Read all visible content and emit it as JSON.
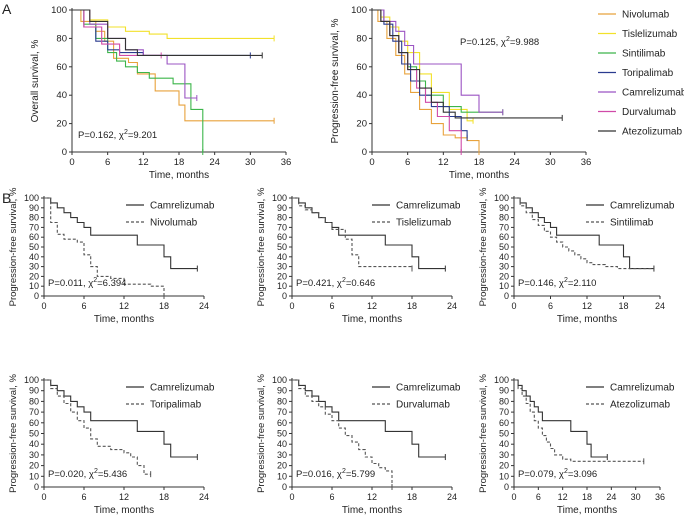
{
  "panel_labels": [
    "A",
    "B"
  ],
  "chart_data": [
    {
      "id": "A1",
      "type": "line",
      "title": "",
      "xlabel": "Time, months",
      "ylabel": "Overall survival, %",
      "xticks": [
        0,
        6,
        12,
        18,
        24,
        30,
        36
      ],
      "yticks": [
        0,
        20,
        40,
        60,
        80,
        100
      ],
      "xlim": [
        0,
        36
      ],
      "ylim": [
        0,
        100
      ],
      "annotation": {
        "p": "P=0.162, χ",
        "sup": "2",
        "stat": "=9.201"
      },
      "legend_position": "none",
      "series": [
        {
          "name": "Nivolumab",
          "color": "#e8a23c",
          "dash": "",
          "t": [
            0,
            1.5,
            4,
            5.5,
            7,
            9.5,
            11,
            14,
            16,
            18,
            19,
            34
          ],
          "y": [
            100,
            92,
            85,
            78,
            66,
            63,
            55,
            43,
            43,
            33,
            22,
            22
          ]
        },
        {
          "name": "Tislelizumab",
          "color": "#f2e12b",
          "dash": "",
          "t": [
            0,
            3,
            6,
            9,
            13,
            16,
            34
          ],
          "y": [
            100,
            93,
            88,
            85,
            83,
            80,
            80
          ]
        },
        {
          "name": "Sintilimab",
          "color": "#3cb54a",
          "dash": "",
          "t": [
            0,
            2,
            4,
            6,
            7.5,
            9,
            11,
            13,
            17,
            20,
            22
          ],
          "y": [
            100,
            90,
            80,
            70,
            64,
            60,
            56,
            52,
            48,
            30,
            0
          ]
        },
        {
          "name": "Toripalimab",
          "color": "#2a3b8f",
          "dash": "",
          "t": [
            0,
            2,
            4,
            6,
            8,
            12,
            30
          ],
          "y": [
            100,
            88,
            78,
            72,
            70,
            68,
            68
          ]
        },
        {
          "name": "Camrelizumab",
          "color": "#9b54c3",
          "dash": "",
          "t": [
            0,
            3,
            6,
            9,
            12,
            16,
            19,
            21
          ],
          "y": [
            100,
            90,
            80,
            72,
            68,
            62,
            38,
            38
          ]
        },
        {
          "name": "Durvalumab",
          "color": "#d04aa8",
          "dash": "",
          "t": [
            0,
            2,
            5,
            8,
            15
          ],
          "y": [
            100,
            88,
            76,
            68,
            68
          ]
        },
        {
          "name": "Atezolizumab",
          "color": "#333333",
          "dash": "",
          "t": [
            0,
            3,
            6,
            9,
            11,
            32
          ],
          "y": [
            100,
            92,
            80,
            72,
            68,
            68
          ]
        }
      ]
    },
    {
      "id": "A2",
      "type": "line",
      "title": "",
      "xlabel": "Time, months",
      "ylabel": "Progression-free survival, %",
      "xticks": [
        0,
        6,
        12,
        18,
        24,
        30,
        36
      ],
      "yticks": [
        0,
        20,
        40,
        60,
        80,
        100
      ],
      "xlim": [
        0,
        36
      ],
      "ylim": [
        0,
        100
      ],
      "annotation": {
        "p": "P=0.125, χ",
        "sup": "2",
        "stat": "=9.988"
      },
      "legend_position": "right",
      "series": [
        {
          "name": "Nivolumab",
          "color": "#e8a23c",
          "dash": "",
          "t": [
            0,
            1,
            2.5,
            4,
            5.5,
            6.5,
            8,
            10,
            12,
            14,
            16,
            18
          ],
          "y": [
            100,
            92,
            80,
            68,
            55,
            42,
            30,
            20,
            12,
            10,
            8,
            0
          ]
        },
        {
          "name": "Tislelizumab",
          "color": "#f2e12b",
          "dash": "",
          "t": [
            0,
            1.5,
            3,
            4.5,
            6,
            8,
            10,
            13,
            16,
            17
          ],
          "y": [
            100,
            95,
            88,
            78,
            70,
            55,
            42,
            30,
            22,
            22
          ]
        },
        {
          "name": "Sintilimab",
          "color": "#3cb54a",
          "dash": "",
          "t": [
            0,
            1.5,
            3,
            4.5,
            6,
            7.5,
            9,
            12,
            15,
            20,
            22
          ],
          "y": [
            100,
            92,
            82,
            70,
            60,
            50,
            40,
            32,
            28,
            28,
            28
          ]
        },
        {
          "name": "Toripalimab",
          "color": "#2a3b8f",
          "dash": "",
          "t": [
            0,
            2,
            3.5,
            5,
            6.5,
            8,
            10,
            13,
            15,
            16
          ],
          "y": [
            100,
            90,
            78,
            62,
            50,
            40,
            32,
            25,
            15,
            10
          ]
        },
        {
          "name": "Camrelizumab",
          "color": "#9b54c3",
          "dash": "",
          "t": [
            0,
            2,
            4,
            5.5,
            7,
            13,
            15,
            18,
            22
          ],
          "y": [
            100,
            92,
            85,
            75,
            62,
            62,
            40,
            28,
            28
          ]
        },
        {
          "name": "Durvalumab",
          "color": "#d04aa8",
          "dash": "",
          "t": [
            0,
            1.5,
            3,
            4.5,
            6,
            7.5,
            9,
            11,
            13,
            15
          ],
          "y": [
            100,
            92,
            82,
            70,
            58,
            45,
            35,
            25,
            15,
            0
          ]
        },
        {
          "name": "Atezolizumab",
          "color": "#333333",
          "dash": "",
          "t": [
            0,
            1.5,
            3,
            4.5,
            6,
            8,
            10,
            12,
            14,
            32
          ],
          "y": [
            100,
            92,
            82,
            70,
            58,
            45,
            35,
            28,
            24,
            24
          ]
        }
      ]
    },
    {
      "id": "B1",
      "type": "line",
      "title": "",
      "xlabel": "Time, months",
      "ylabel": "Progression-free survival, %",
      "xticks": [
        0,
        6,
        12,
        18,
        24
      ],
      "yticks": [
        0,
        10,
        20,
        30,
        40,
        50,
        60,
        70,
        80,
        90,
        100
      ],
      "xlim": [
        0,
        24
      ],
      "ylim": [
        0,
        100
      ],
      "annotation": {
        "p": "P=0.011, χ",
        "sup": "2",
        "stat": "=6.394"
      },
      "legend_position": "top-right",
      "series": [
        {
          "name": "Camrelizumab",
          "color": "#333333",
          "dash": "",
          "t": [
            0,
            1,
            2,
            3,
            4,
            5,
            6,
            7,
            13,
            14,
            15,
            18,
            19,
            23
          ],
          "y": [
            100,
            95,
            90,
            85,
            80,
            75,
            70,
            62,
            62,
            52,
            52,
            40,
            28,
            28
          ]
        },
        {
          "name": "Nivolumab",
          "color": "#555555",
          "dash": "3,2",
          "t": [
            0,
            1,
            2,
            3,
            5,
            6,
            7,
            8,
            9,
            10,
            12,
            14,
            16,
            18
          ],
          "y": [
            100,
            75,
            63,
            58,
            55,
            42,
            30,
            20,
            20,
            18,
            12,
            12,
            10,
            0
          ]
        }
      ]
    },
    {
      "id": "B2",
      "type": "line",
      "title": "",
      "xlabel": "Time, months",
      "ylabel": "Progression-free survival, %",
      "xticks": [
        0,
        6,
        12,
        18,
        24
      ],
      "yticks": [
        0,
        10,
        20,
        30,
        40,
        50,
        60,
        70,
        80,
        90,
        100
      ],
      "xlim": [
        0,
        24
      ],
      "ylim": [
        0,
        100
      ],
      "annotation": {
        "p": "P=0.421, χ",
        "sup": "2",
        "stat": "=0.646"
      },
      "legend_position": "top-right",
      "series": [
        {
          "name": "Camrelizumab",
          "color": "#333333",
          "dash": "",
          "t": [
            0,
            1,
            2,
            3,
            4,
            5,
            6,
            7,
            13,
            14,
            15,
            18,
            19,
            23
          ],
          "y": [
            100,
            95,
            90,
            85,
            80,
            75,
            70,
            62,
            62,
            52,
            52,
            40,
            28,
            28
          ]
        },
        {
          "name": "Tislelizumab",
          "color": "#555555",
          "dash": "3,2",
          "t": [
            0,
            1,
            2,
            3,
            4,
            5,
            6,
            8,
            9,
            10,
            12,
            14,
            18
          ],
          "y": [
            100,
            92,
            88,
            85,
            80,
            75,
            68,
            58,
            42,
            30,
            30,
            30,
            28
          ]
        }
      ]
    },
    {
      "id": "B3",
      "type": "line",
      "title": "",
      "xlabel": "Time, months",
      "ylabel": "Progression-free survival, %",
      "xticks": [
        0,
        6,
        12,
        18,
        24
      ],
      "yticks": [
        0,
        10,
        20,
        30,
        40,
        50,
        60,
        70,
        80,
        90,
        100
      ],
      "xlim": [
        0,
        24
      ],
      "ylim": [
        0,
        100
      ],
      "annotation": {
        "p": "P=0.146, χ",
        "sup": "2",
        "stat": "=2.110"
      },
      "legend_position": "top-right",
      "series": [
        {
          "name": "Camrelizumab",
          "color": "#333333",
          "dash": "",
          "t": [
            0,
            1,
            2,
            3,
            4,
            5,
            6,
            7,
            13,
            14,
            15,
            18,
            19,
            23
          ],
          "y": [
            100,
            95,
            90,
            85,
            80,
            75,
            70,
            62,
            62,
            52,
            52,
            40,
            28,
            28
          ]
        },
        {
          "name": "Sintilimab",
          "color": "#555555",
          "dash": "3,2",
          "t": [
            0,
            1,
            2,
            3,
            4,
            5,
            6,
            7,
            8,
            9,
            10,
            11,
            12,
            13,
            15,
            17,
            21,
            23
          ],
          "y": [
            100,
            92,
            85,
            78,
            72,
            66,
            60,
            55,
            50,
            46,
            42,
            38,
            34,
            32,
            30,
            28,
            28,
            28
          ]
        }
      ]
    },
    {
      "id": "B4",
      "type": "line",
      "title": "",
      "xlabel": "Time, months",
      "ylabel": "Progression-free survival, %",
      "xticks": [
        0,
        6,
        12,
        18,
        24
      ],
      "yticks": [
        0,
        10,
        20,
        30,
        40,
        50,
        60,
        70,
        80,
        90,
        100
      ],
      "xlim": [
        0,
        24
      ],
      "ylim": [
        0,
        100
      ],
      "annotation": {
        "p": "P=0.020, χ",
        "sup": "2",
        "stat": "=5.436"
      },
      "legend_position": "top-right",
      "series": [
        {
          "name": "Camrelizumab",
          "color": "#333333",
          "dash": "",
          "t": [
            0,
            1,
            2,
            3,
            4,
            5,
            6,
            7,
            13,
            14,
            15,
            18,
            19,
            23
          ],
          "y": [
            100,
            95,
            90,
            85,
            80,
            75,
            70,
            62,
            62,
            52,
            52,
            40,
            28,
            28
          ]
        },
        {
          "name": "Toripalimab",
          "color": "#555555",
          "dash": "3,2",
          "t": [
            0,
            1,
            2,
            3,
            4,
            5,
            6,
            7,
            8,
            10,
            12,
            13,
            14,
            15,
            16
          ],
          "y": [
            100,
            92,
            85,
            78,
            70,
            62,
            55,
            45,
            38,
            35,
            32,
            28,
            20,
            12,
            12
          ]
        }
      ]
    },
    {
      "id": "B5",
      "type": "line",
      "title": "",
      "xlabel": "Time, months",
      "ylabel": "Progression-free survival, %",
      "xticks": [
        0,
        6,
        12,
        18,
        24
      ],
      "yticks": [
        0,
        10,
        20,
        30,
        40,
        50,
        60,
        70,
        80,
        90,
        100
      ],
      "xlim": [
        0,
        24
      ],
      "ylim": [
        0,
        100
      ],
      "annotation": {
        "p": "P=0.016, χ",
        "sup": "2",
        "stat": "=5.799"
      },
      "legend_position": "top-right",
      "series": [
        {
          "name": "Camrelizumab",
          "color": "#333333",
          "dash": "",
          "t": [
            0,
            1,
            2,
            3,
            4,
            5,
            6,
            7,
            13,
            14,
            15,
            18,
            19,
            23
          ],
          "y": [
            100,
            95,
            90,
            85,
            80,
            75,
            70,
            62,
            62,
            52,
            52,
            40,
            28,
            28
          ]
        },
        {
          "name": "Durvalumab",
          "color": "#555555",
          "dash": "3,2",
          "t": [
            0,
            1,
            2,
            3,
            4,
            5,
            6,
            7,
            8,
            9,
            10,
            11,
            12,
            13,
            14,
            15
          ],
          "y": [
            100,
            92,
            85,
            80,
            75,
            68,
            62,
            55,
            48,
            42,
            35,
            28,
            22,
            18,
            15,
            0
          ]
        }
      ]
    },
    {
      "id": "B6",
      "type": "line",
      "title": "",
      "xlabel": "Time, months",
      "ylabel": "Progression-free survival, %",
      "xticks": [
        0,
        6,
        12,
        18,
        24,
        30,
        36
      ],
      "yticks": [
        0,
        10,
        20,
        30,
        40,
        50,
        60,
        70,
        80,
        90,
        100
      ],
      "xlim": [
        0,
        36
      ],
      "ylim": [
        0,
        100
      ],
      "annotation": {
        "p": "P=0.079, χ",
        "sup": "2",
        "stat": "=3.096"
      },
      "legend_position": "top-right",
      "series": [
        {
          "name": "Camrelizumab",
          "color": "#333333",
          "dash": "",
          "t": [
            0,
            1,
            2,
            3,
            4,
            5,
            6,
            7,
            13,
            14,
            15,
            18,
            19,
            23
          ],
          "y": [
            100,
            95,
            90,
            85,
            80,
            75,
            70,
            62,
            62,
            52,
            52,
            40,
            28,
            28
          ]
        },
        {
          "name": "Atezolizumab",
          "color": "#555555",
          "dash": "3,2",
          "t": [
            0,
            1,
            2,
            3,
            4,
            5,
            6,
            7,
            8,
            9,
            10,
            12,
            14,
            32
          ],
          "y": [
            100,
            92,
            85,
            78,
            70,
            62,
            55,
            48,
            42,
            36,
            30,
            26,
            24,
            24
          ]
        }
      ]
    }
  ]
}
